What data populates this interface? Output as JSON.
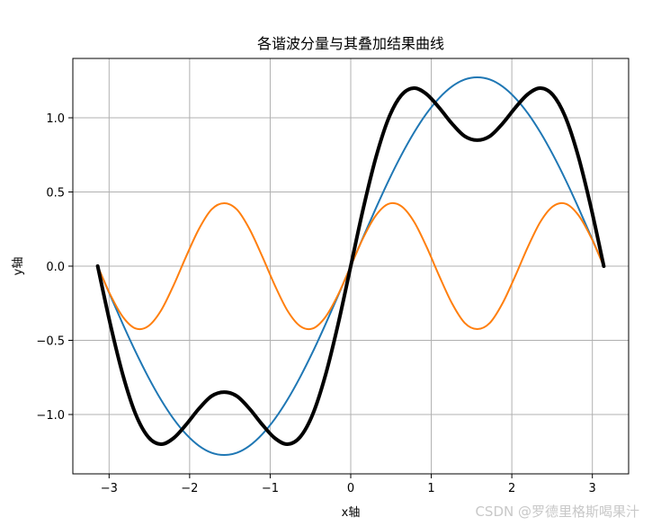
{
  "chart_data": {
    "type": "line",
    "title": "各谐波分量与其叠加结果曲线",
    "xlabel": "x轴",
    "ylabel": "y轴",
    "xlim": [
      -3.45,
      3.45
    ],
    "ylim": [
      -1.4,
      1.4
    ],
    "xticks": [
      -3,
      -2,
      -1,
      0,
      1,
      2,
      3
    ],
    "xtick_labels": [
      "−3",
      "−2",
      "−1",
      "0",
      "1",
      "2",
      "3"
    ],
    "yticks": [
      -1.0,
      -0.5,
      0.0,
      0.5,
      1.0
    ],
    "ytick_labels": [
      "−1.0",
      "−0.5",
      "0.0",
      "0.5",
      "1.0"
    ],
    "grid": true,
    "series": [
      {
        "color": "#1f77b4",
        "linewidth": "normal",
        "x": [
          -3.1416,
          -2.9845,
          -2.8274,
          -2.6704,
          -2.5133,
          -2.3562,
          -2.1991,
          -2.042,
          -1.885,
          -1.7279,
          -1.5708,
          -1.4137,
          -1.2566,
          -1.0996,
          -0.9425,
          -0.7854,
          -0.6283,
          -0.4712,
          -0.3142,
          -0.1571,
          0.0,
          0.1571,
          0.3142,
          0.4712,
          0.6283,
          0.7854,
          0.9425,
          1.0996,
          1.2566,
          1.4137,
          1.5708,
          1.7279,
          1.885,
          2.042,
          2.1991,
          2.3562,
          2.5133,
          2.6704,
          2.8274,
          2.9845,
          3.1416
        ],
        "y": [
          0.0,
          -0.199,
          -0.393,
          -0.578,
          -0.748,
          -0.9,
          -1.03,
          -1.134,
          -1.211,
          -1.258,
          -1.273,
          -1.258,
          -1.211,
          -1.134,
          -1.03,
          -0.9,
          -0.748,
          -0.578,
          -0.393,
          -0.199,
          0.0,
          0.199,
          0.393,
          0.578,
          0.748,
          0.9,
          1.03,
          1.134,
          1.211,
          1.258,
          1.273,
          1.258,
          1.211,
          1.134,
          1.03,
          0.9,
          0.748,
          0.578,
          0.393,
          0.199,
          0.0
        ]
      },
      {
        "color": "#ff7f0e",
        "linewidth": "normal",
        "x": [
          -3.1416,
          -2.9845,
          -2.8274,
          -2.6704,
          -2.5133,
          -2.3562,
          -2.1991,
          -2.042,
          -1.885,
          -1.7279,
          -1.5708,
          -1.4137,
          -1.2566,
          -1.0996,
          -0.9425,
          -0.7854,
          -0.6283,
          -0.4712,
          -0.3142,
          -0.1571,
          0.0,
          0.1571,
          0.3142,
          0.4712,
          0.6283,
          0.7854,
          0.9425,
          1.0996,
          1.2566,
          1.4137,
          1.5708,
          1.7279,
          1.885,
          2.042,
          2.1991,
          2.3562,
          2.5133,
          2.6704,
          2.8274,
          2.9845,
          3.1416
        ],
        "y": [
          0.0,
          -0.193,
          -0.343,
          -0.42,
          -0.404,
          -0.3,
          -0.129,
          0.067,
          0.25,
          0.382,
          0.424,
          0.382,
          0.25,
          0.067,
          -0.129,
          -0.3,
          -0.404,
          -0.42,
          -0.343,
          -0.193,
          0.0,
          0.193,
          0.343,
          0.42,
          0.404,
          0.3,
          0.129,
          -0.067,
          -0.25,
          -0.382,
          -0.424,
          -0.382,
          -0.25,
          -0.067,
          0.129,
          0.3,
          0.404,
          0.42,
          0.343,
          0.193,
          0.0
        ]
      },
      {
        "color": "#000000",
        "linewidth": "thick",
        "x": [
          -3.1416,
          -2.9845,
          -2.8274,
          -2.6704,
          -2.5133,
          -2.3562,
          -2.1991,
          -2.042,
          -1.885,
          -1.7279,
          -1.5708,
          -1.4137,
          -1.2566,
          -1.0996,
          -0.9425,
          -0.7854,
          -0.6283,
          -0.4712,
          -0.3142,
          -0.1571,
          0.0,
          0.1571,
          0.3142,
          0.4712,
          0.6283,
          0.7854,
          0.9425,
          1.0996,
          1.2566,
          1.4137,
          1.5708,
          1.7279,
          1.885,
          2.042,
          2.1991,
          2.3562,
          2.5133,
          2.6704,
          2.8274,
          2.9845,
          3.1416
        ],
        "y": [
          0.0,
          -0.392,
          -0.736,
          -0.998,
          -1.152,
          -1.2,
          -1.159,
          -1.067,
          -0.961,
          -0.876,
          -0.849,
          -0.876,
          -0.961,
          -1.067,
          -1.159,
          -1.2,
          -1.152,
          -0.998,
          -0.736,
          -0.392,
          0.0,
          0.392,
          0.736,
          0.998,
          1.152,
          1.2,
          1.159,
          1.067,
          0.961,
          0.876,
          0.849,
          0.876,
          0.961,
          1.067,
          1.159,
          1.2,
          1.152,
          0.998,
          0.736,
          0.392,
          0.0
        ]
      }
    ]
  },
  "watermark": "CSDN @罗德里格斯喝果汁"
}
